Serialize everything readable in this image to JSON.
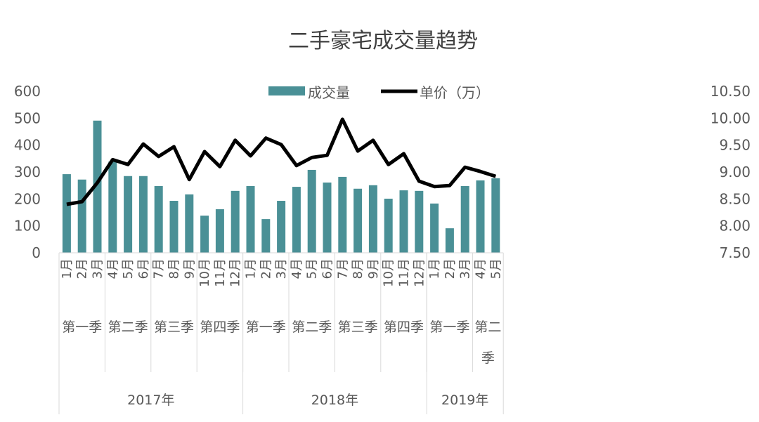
{
  "chart_data": {
    "type": "bar+line",
    "title": "二手豪宅成交量趋势",
    "legend_position": "top",
    "grid": false,
    "colors": {
      "bar": "#4a9096",
      "line": "#000000"
    },
    "categories": [
      "1月",
      "2月",
      "3月",
      "4月",
      "5月",
      "6月",
      "7月",
      "8月",
      "9月",
      "10月",
      "11月",
      "12月",
      "1月",
      "2月",
      "3月",
      "4月",
      "5月",
      "6月",
      "7月",
      "8月",
      "9月",
      "10月",
      "11月",
      "12月",
      "1月",
      "2月",
      "3月",
      "4月",
      "5月"
    ],
    "quarters": [
      {
        "label": "第一季",
        "count": 3
      },
      {
        "label": "第二季",
        "count": 3
      },
      {
        "label": "第三季",
        "count": 3
      },
      {
        "label": "第四季",
        "count": 3
      },
      {
        "label": "第一季",
        "count": 3
      },
      {
        "label": "第二季",
        "count": 3
      },
      {
        "label": "第三季",
        "count": 3
      },
      {
        "label": "第四季",
        "count": 3
      },
      {
        "label": "第一季",
        "count": 3
      },
      {
        "label": "第二季",
        "count": 2
      }
    ],
    "years": [
      {
        "label": "2017年",
        "count": 12
      },
      {
        "label": "2018年",
        "count": 12
      },
      {
        "label": "2019年",
        "count": 5
      }
    ],
    "y_left": {
      "range": [
        0,
        600
      ],
      "ticks": [
        "0",
        "100",
        "200",
        "300",
        "400",
        "500",
        "600"
      ]
    },
    "y_right": {
      "range": [
        7.5,
        10.5
      ],
      "ticks": [
        "7.50",
        "8.00",
        "8.50",
        "9.00",
        "9.50",
        "10.00",
        "10.50"
      ]
    },
    "series": [
      {
        "name": "成交量",
        "type": "bar",
        "axis": "left",
        "values": [
          292,
          272,
          491,
          339,
          285,
          285,
          248,
          193,
          217,
          138,
          162,
          230,
          248,
          125,
          193,
          245,
          308,
          261,
          282,
          238,
          251,
          201,
          232,
          230,
          183,
          91,
          248,
          269,
          277
        ]
      },
      {
        "name": "单价（万）",
        "type": "line",
        "axis": "right",
        "values": [
          8.4,
          8.45,
          8.8,
          9.23,
          9.14,
          9.52,
          9.29,
          9.47,
          8.86,
          9.38,
          9.1,
          9.59,
          9.3,
          9.63,
          9.51,
          9.12,
          9.27,
          9.31,
          9.98,
          9.39,
          9.59,
          9.14,
          9.34,
          8.83,
          8.73,
          8.75,
          9.09,
          9.01,
          8.92
        ]
      }
    ]
  }
}
